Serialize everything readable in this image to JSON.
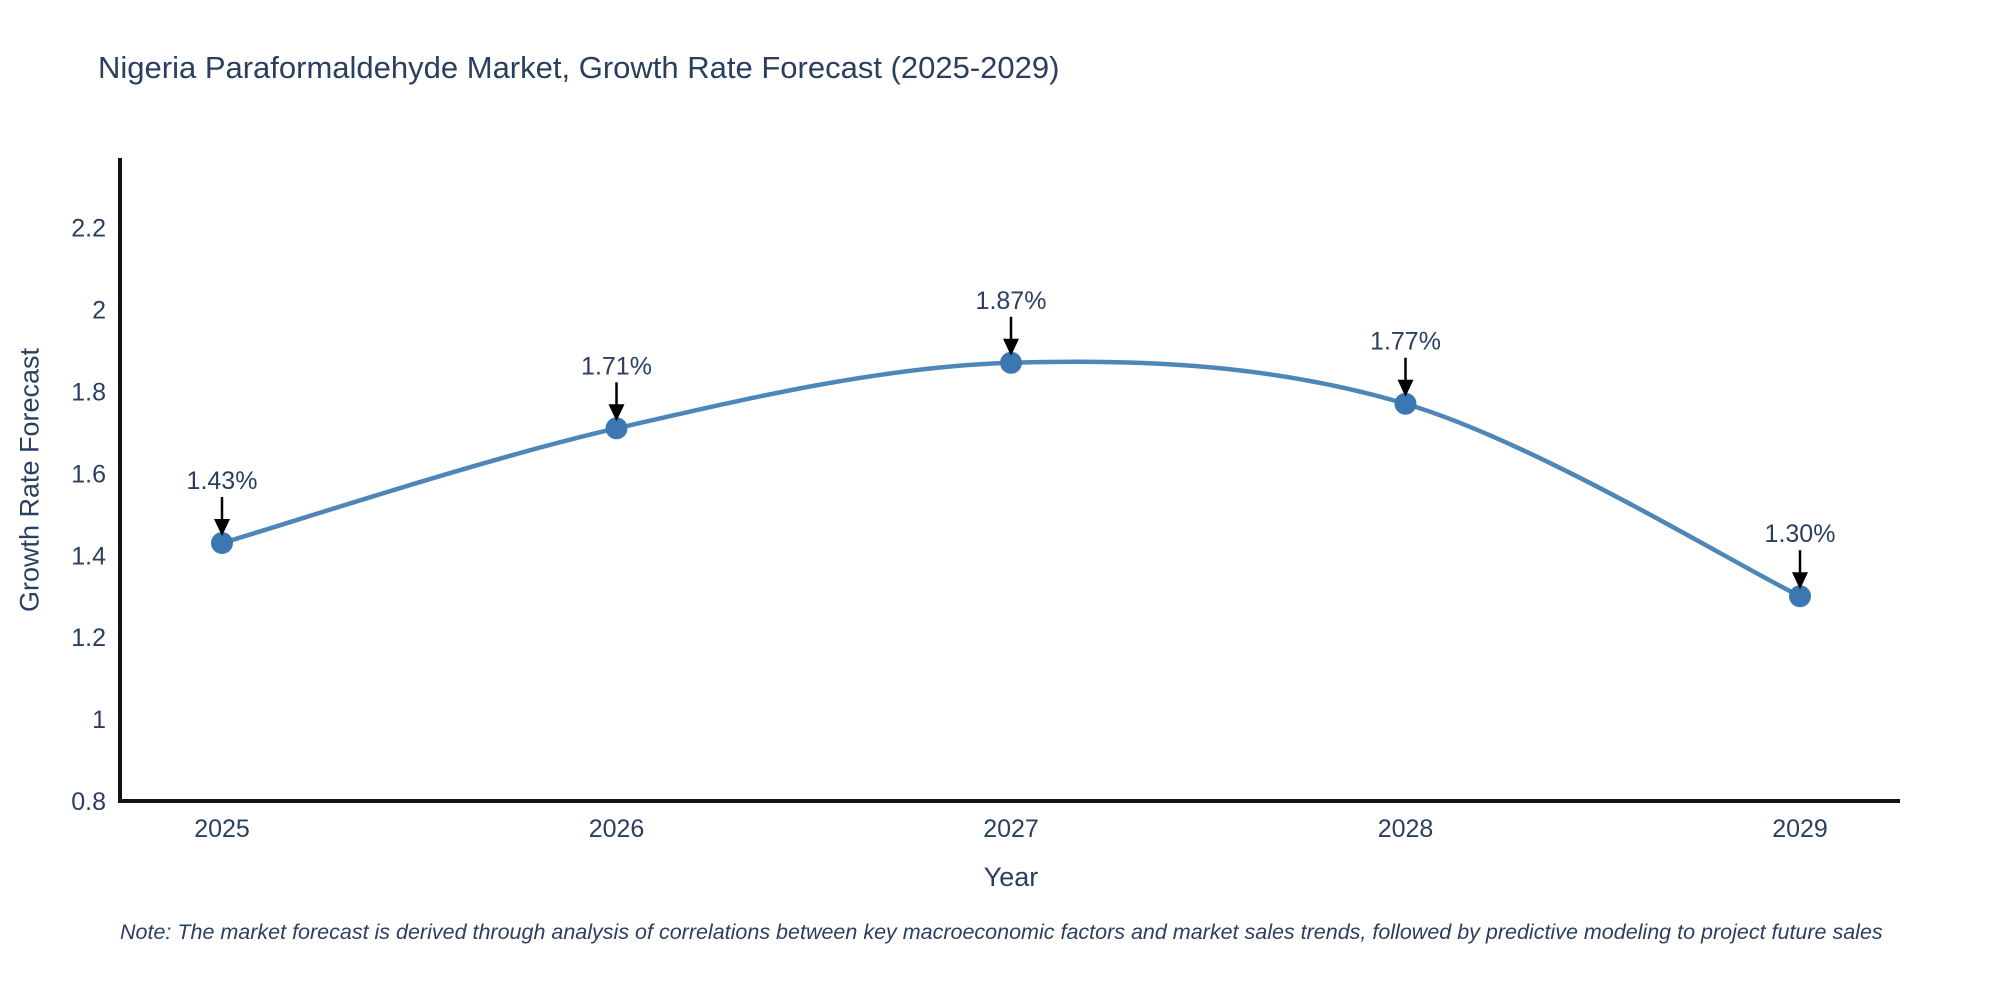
{
  "chart_data": {
    "type": "line",
    "line_shape": "spline",
    "title": "Nigeria Paraformaldehyde Market, Growth Rate Forecast (2025-2029)",
    "xlabel": "Year",
    "ylabel": "Growth Rate Forecast",
    "categories": [
      "2025",
      "2026",
      "2027",
      "2028",
      "2029"
    ],
    "series": [
      {
        "name": "Growth Rate Forecast",
        "values": [
          1.43,
          1.71,
          1.87,
          1.77,
          1.3
        ]
      }
    ],
    "point_labels": [
      "1.43%",
      "1.71%",
      "1.87%",
      "1.77%",
      "1.30%"
    ],
    "yticks": [
      0.8,
      1,
      1.2,
      1.4,
      1.6,
      1.8,
      2,
      2.2
    ],
    "ytick_labels": [
      "0.8",
      "1",
      "1.2",
      "1.4",
      "1.6",
      "1.8",
      "2",
      "2.2"
    ],
    "ylim": [
      0.8,
      2.37
    ],
    "grid": false,
    "legend": "none",
    "colors": {
      "line": "#4e86b8",
      "marker": "#3b77b0",
      "axis": "#101418",
      "text": "#2a3f5f",
      "annotation_arrow": "#000000"
    },
    "note": "Note: The market forecast is derived through analysis of correlations between key macroeconomic factors and market sales trends, followed by predictive modeling to project future sales"
  }
}
